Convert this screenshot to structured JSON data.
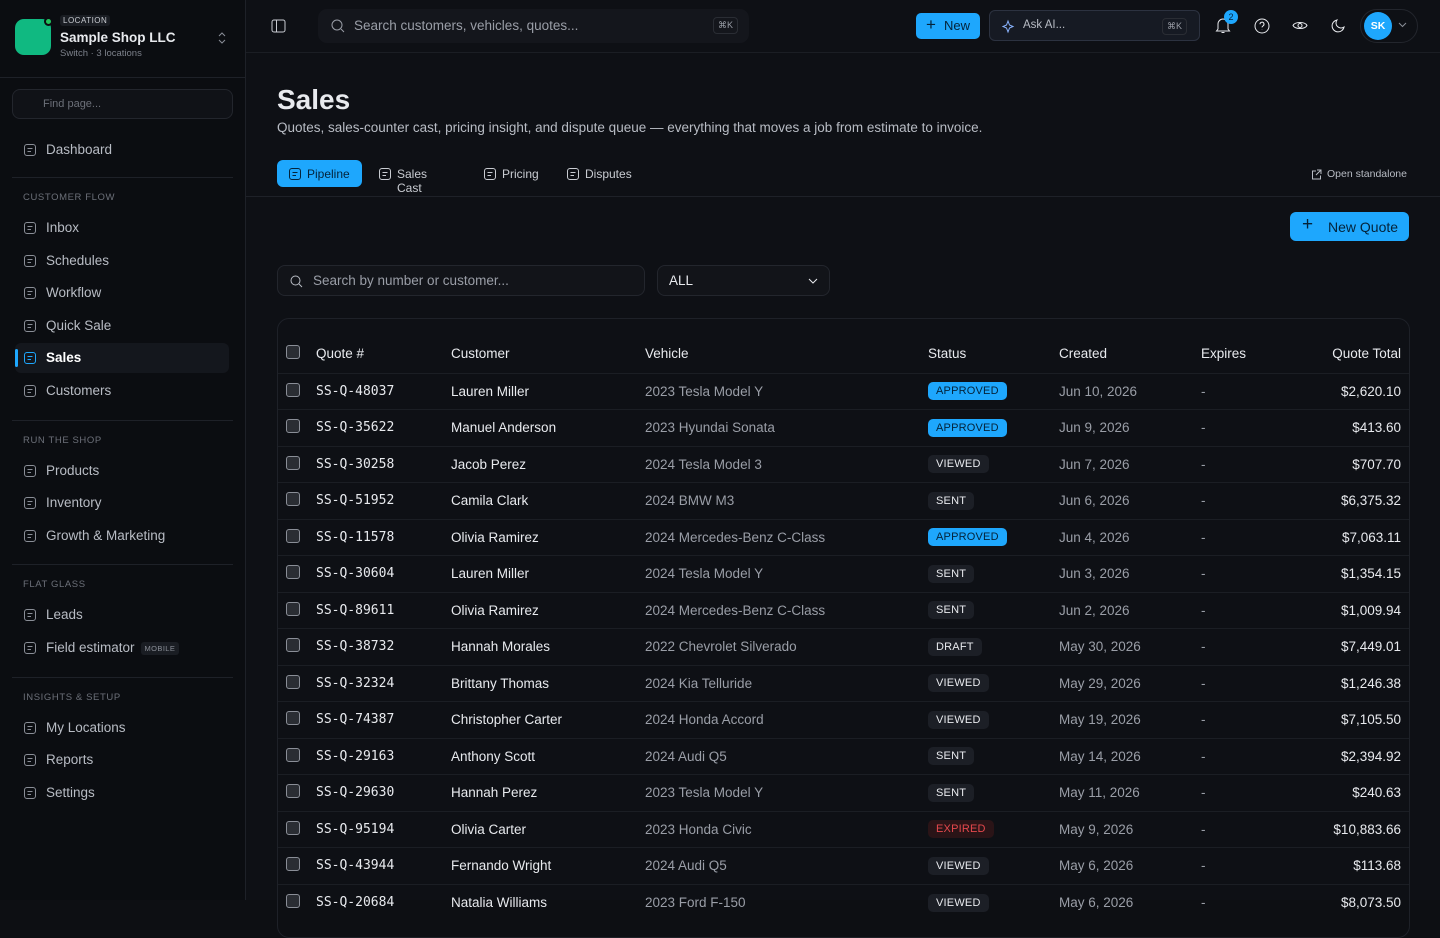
{
  "sidebar": {
    "location_label": "LOCATION",
    "shop_name": "Sample Shop LLC",
    "shop_sub": "Switch · 3 locations",
    "find_placeholder": "Find page...",
    "top_item": "Dashboard",
    "sections": [
      {
        "title": "CUSTOMER FLOW",
        "items": [
          {
            "label": "Inbox"
          },
          {
            "label": "Schedules"
          },
          {
            "label": "Workflow"
          },
          {
            "label": "Quick Sale"
          },
          {
            "label": "Sales",
            "active": true
          },
          {
            "label": "Customers"
          }
        ]
      },
      {
        "title": "RUN THE SHOP",
        "items": [
          {
            "label": "Products"
          },
          {
            "label": "Inventory"
          },
          {
            "label": "Growth & Marketing"
          }
        ]
      },
      {
        "title": "FLAT GLASS",
        "items": [
          {
            "label": "Leads"
          },
          {
            "label": "Field estimator",
            "badge": "MOBILE"
          }
        ]
      },
      {
        "title": "INSIGHTS & SETUP",
        "items": [
          {
            "label": "My Locations"
          },
          {
            "label": "Reports"
          },
          {
            "label": "Settings"
          }
        ]
      }
    ]
  },
  "topbar": {
    "search_placeholder": "Search customers, vehicles, quotes...",
    "search_kbd": "⌘K",
    "new_button": "New",
    "ask_ai": "Ask AI...",
    "ask_kbd": "⌘K",
    "notification_count": 2,
    "avatar": "SK"
  },
  "header": {
    "title": "Sales",
    "subtitle": "Quotes, sales-counter cast, pricing insight, and dispute queue — everything that moves a job from estimate to invoice.",
    "tabs": [
      "Pipeline",
      "Sales Cast",
      "Pricing",
      "Disputes"
    ],
    "open_standalone": "Open standalone"
  },
  "toolbar": {
    "new_quote": "New Quote",
    "search_placeholder": "Search by number or customer...",
    "filter": "ALL"
  },
  "table": {
    "columns": [
      "Quote #",
      "Customer",
      "Vehicle",
      "Status",
      "Created",
      "Expires",
      "Quote Total"
    ],
    "rows": [
      {
        "quote": "SS-Q-48037",
        "customer": "Lauren Miller",
        "vehicle": "2023 Tesla Model Y",
        "status": "APPROVED",
        "status_fill": "#1ea7fd",
        "status_color": "#04233a",
        "created": "Jun 10, 2026",
        "expires": "-",
        "total": "$2,620.10"
      },
      {
        "quote": "SS-Q-35622",
        "customer": "Manuel Anderson",
        "vehicle": "2023 Hyundai Sonata",
        "status": "APPROVED",
        "status_fill": "#1ea7fd",
        "status_color": "#04233a",
        "created": "Jun 9, 2026",
        "expires": "-",
        "total": "$413.60"
      },
      {
        "quote": "SS-Q-30258",
        "customer": "Jacob Perez",
        "vehicle": "2024 Tesla Model 3",
        "status": "VIEWED",
        "status_fill": "#1c1f26",
        "status_color": "#e8eaee",
        "created": "Jun 7, 2026",
        "expires": "-",
        "total": "$707.70"
      },
      {
        "quote": "SS-Q-51952",
        "customer": "Camila Clark",
        "vehicle": "2024 BMW M3",
        "status": "SENT",
        "status_fill": "#1c1f26",
        "status_color": "#e8eaee",
        "created": "Jun 6, 2026",
        "expires": "-",
        "total": "$6,375.32"
      },
      {
        "quote": "SS-Q-11578",
        "customer": "Olivia Ramirez",
        "vehicle": "2024 Mercedes-Benz C-Class",
        "status": "APPROVED",
        "status_fill": "#1ea7fd",
        "status_color": "#04233a",
        "created": "Jun 4, 2026",
        "expires": "-",
        "total": "$7,063.11"
      },
      {
        "quote": "SS-Q-30604",
        "customer": "Lauren Miller",
        "vehicle": "2024 Tesla Model Y",
        "status": "SENT",
        "status_fill": "#1c1f26",
        "status_color": "#e8eaee",
        "created": "Jun 3, 2026",
        "expires": "-",
        "total": "$1,354.15"
      },
      {
        "quote": "SS-Q-89611",
        "customer": "Olivia Ramirez",
        "vehicle": "2024 Mercedes-Benz C-Class",
        "status": "SENT",
        "status_fill": "#1c1f26",
        "status_color": "#e8eaee",
        "created": "Jun 2, 2026",
        "expires": "-",
        "total": "$1,009.94"
      },
      {
        "quote": "SS-Q-38732",
        "customer": "Hannah Morales",
        "vehicle": "2022 Chevrolet Silverado",
        "status": "DRAFT",
        "status_fill": "#1c1f26",
        "status_color": "#e8eaee",
        "created": "May 30, 2026",
        "expires": "-",
        "total": "$7,449.01"
      },
      {
        "quote": "SS-Q-32324",
        "customer": "Brittany Thomas",
        "vehicle": "2024 Kia Telluride",
        "status": "VIEWED",
        "status_fill": "#1c1f26",
        "status_color": "#e8eaee",
        "created": "May 29, 2026",
        "expires": "-",
        "total": "$1,246.38"
      },
      {
        "quote": "SS-Q-74387",
        "customer": "Christopher Carter",
        "vehicle": "2024 Honda Accord",
        "status": "VIEWED",
        "status_fill": "#1c1f26",
        "status_color": "#e8eaee",
        "created": "May 19, 2026",
        "expires": "-",
        "total": "$7,105.50"
      },
      {
        "quote": "SS-Q-29163",
        "customer": "Anthony Scott",
        "vehicle": "2024 Audi Q5",
        "status": "SENT",
        "status_fill": "#1c1f26",
        "status_color": "#e8eaee",
        "created": "May 14, 2026",
        "expires": "-",
        "total": "$2,394.92"
      },
      {
        "quote": "SS-Q-29630",
        "customer": "Hannah Perez",
        "vehicle": "2023 Tesla Model Y",
        "status": "SENT",
        "status_fill": "#1c1f26",
        "status_color": "#e8eaee",
        "created": "May 11, 2026",
        "expires": "-",
        "total": "$240.63"
      },
      {
        "quote": "SS-Q-95194",
        "customer": "Olivia Carter",
        "vehicle": "2023 Honda Civic",
        "status": "EXPIRED",
        "status_fill": "#2a1417",
        "status_color": "#e5484d",
        "created": "May 9, 2026",
        "expires": "-",
        "total": "$10,883.66"
      },
      {
        "quote": "SS-Q-43944",
        "customer": "Fernando Wright",
        "vehicle": "2024 Audi Q5",
        "status": "VIEWED",
        "status_fill": "#1c1f26",
        "status_color": "#e8eaee",
        "created": "May 6, 2026",
        "expires": "-",
        "total": "$113.68"
      },
      {
        "quote": "SS-Q-20684",
        "customer": "Natalia Williams",
        "vehicle": "2023 Ford F-150",
        "status": "VIEWED",
        "status_fill": "#1c1f26",
        "status_color": "#e8eaee",
        "created": "May 6, 2026",
        "expires": "-",
        "total": "$8,073.50"
      }
    ]
  }
}
